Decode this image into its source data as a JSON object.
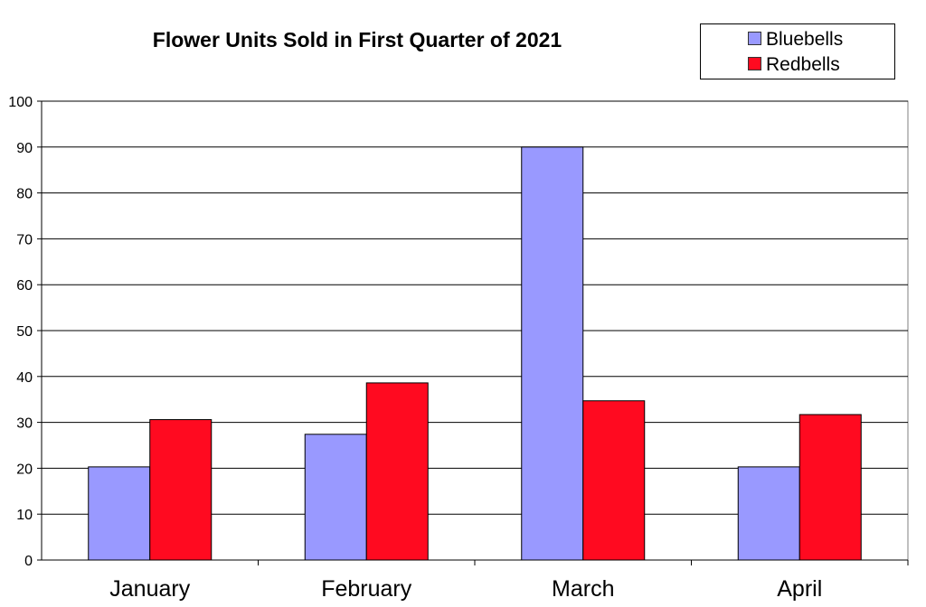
{
  "chart_data": {
    "type": "bar",
    "title": "Flower Units Sold in First Quarter of 2021",
    "categories": [
      "January",
      "February",
      "March",
      "April"
    ],
    "series": [
      {
        "name": "Bluebells",
        "color": "#9999ff",
        "values": [
          20.3,
          27.4,
          90,
          20.3
        ]
      },
      {
        "name": "Redbells",
        "color": "#ff0a20",
        "values": [
          30.6,
          38.6,
          34.7,
          31.7
        ]
      }
    ],
    "xlabel": "",
    "ylabel": "",
    "ylim": [
      0,
      100
    ],
    "yticks": [
      0,
      10,
      20,
      30,
      40,
      50,
      60,
      70,
      80,
      90,
      100
    ],
    "grid": true,
    "legend_position": "top-right"
  }
}
